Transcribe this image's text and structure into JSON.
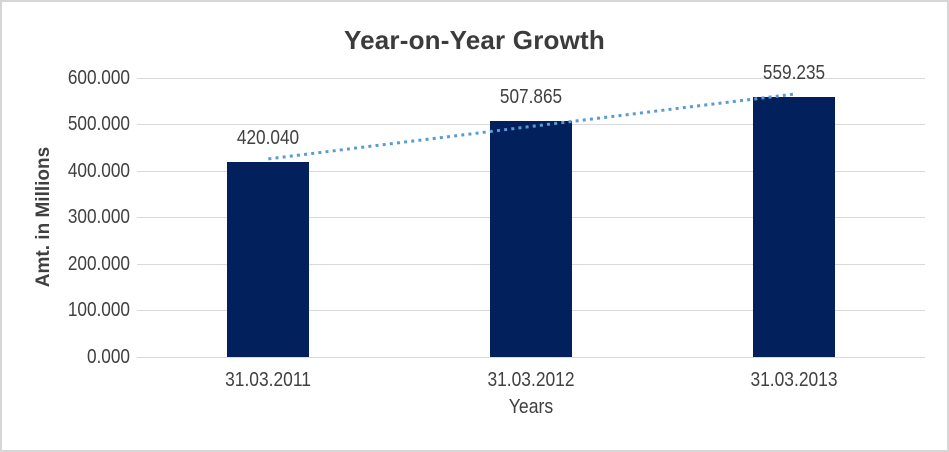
{
  "chart_data": {
    "type": "bar",
    "title": "Year-on-Year Growth",
    "categories": [
      "31.03.2011",
      "31.03.2012",
      "31.03.2013"
    ],
    "values": [
      420.04,
      507.865,
      559.235
    ],
    "value_labels": [
      "420.040",
      "507.865",
      "559.235"
    ],
    "xlabel": "Years",
    "ylabel": "Amt. in Millions",
    "ylim": [
      0,
      600
    ],
    "ytick_step": 100,
    "ytick_labels": [
      "0.000",
      "100.000",
      "200.000",
      "300.000",
      "400.000",
      "500.000",
      "600.000"
    ],
    "grid": true,
    "legend": "none",
    "trendline": {
      "type": "linear",
      "style": "dotted"
    }
  },
  "colors": {
    "bar": "#02215C",
    "trendline": "#5B9BD5",
    "gridline": "#D9D9D9",
    "axis_text": "#404040",
    "title_text": "#3B3B3B",
    "frame_border": "#D6D6D6",
    "background": "#FFFFFF"
  }
}
